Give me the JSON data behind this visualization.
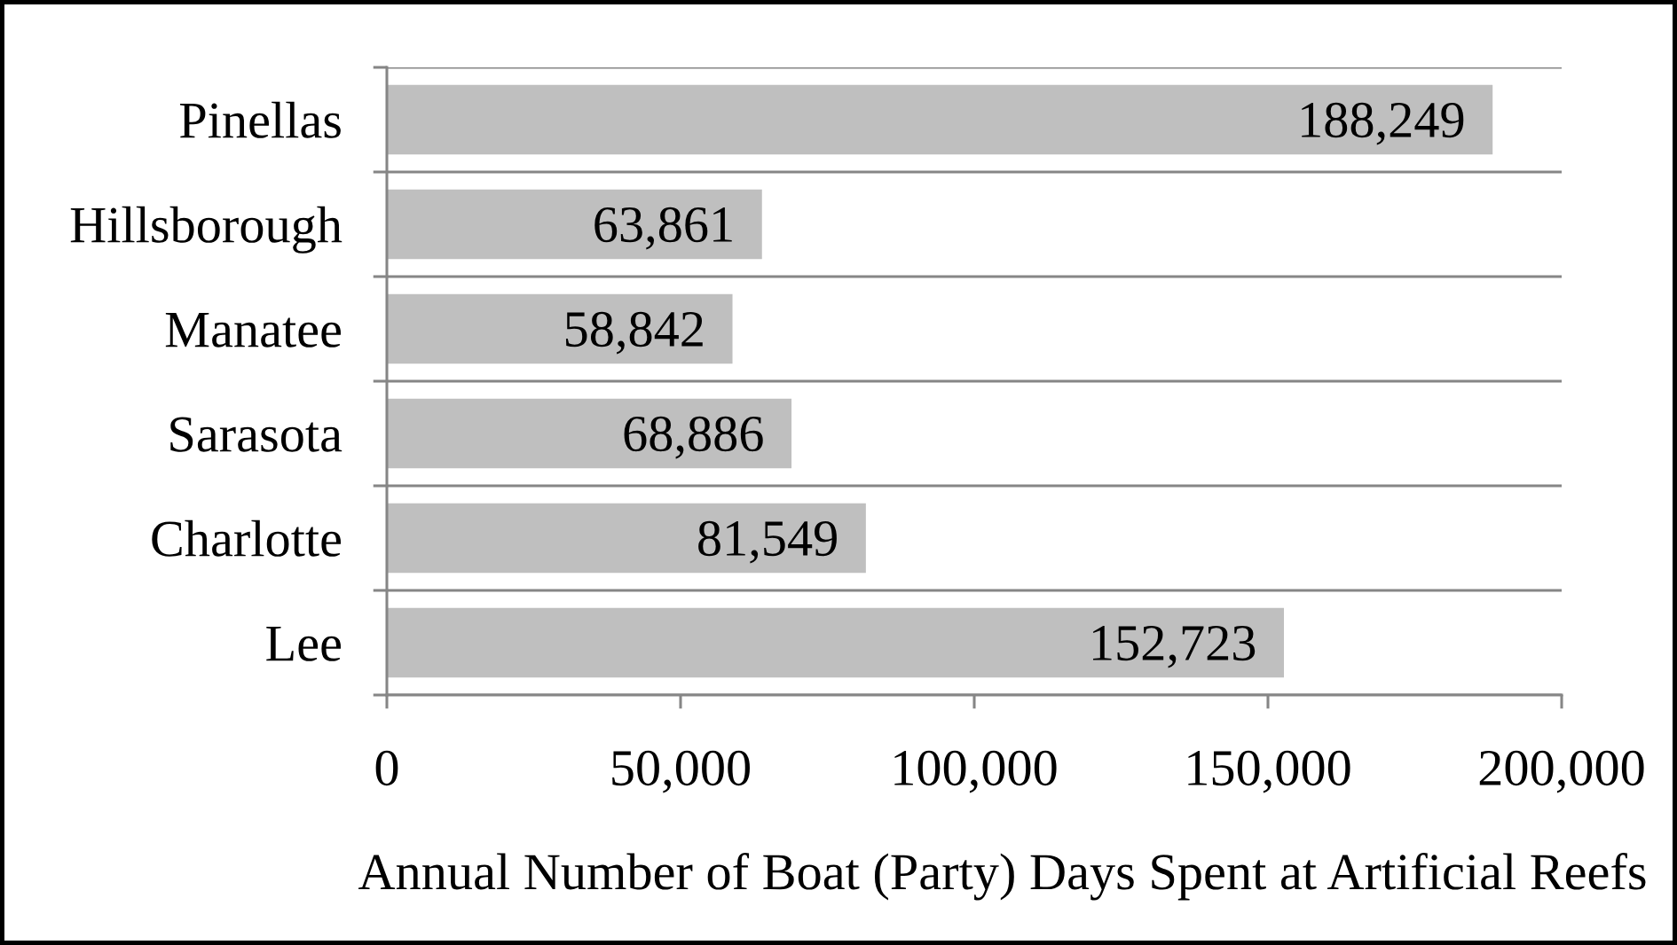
{
  "chart_data": {
    "type": "bar",
    "orientation": "horizontal",
    "categories": [
      "Pinellas",
      "Hillsborough",
      "Manatee",
      "Sarasota",
      "Charlotte",
      "Lee"
    ],
    "values": [
      188249,
      63861,
      58842,
      68886,
      81549,
      152723
    ],
    "value_labels": [
      "188,249",
      "63,861",
      "58,842",
      "68,886",
      "81,549",
      "152,723"
    ],
    "color": "#bfbfbf",
    "xlabel": "Annual Number of Boat (Party) Days Spent at Artificial Reefs",
    "xlim": [
      0,
      200000
    ],
    "xticks": [
      0,
      {
        "value": 50000,
        "label": "50,000"
      },
      {
        "value": 100000,
        "label": "100,000"
      },
      {
        "value": 150000,
        "label": "150,000"
      },
      {
        "value": 200000,
        "label": "200,000"
      }
    ],
    "grid": "y"
  }
}
